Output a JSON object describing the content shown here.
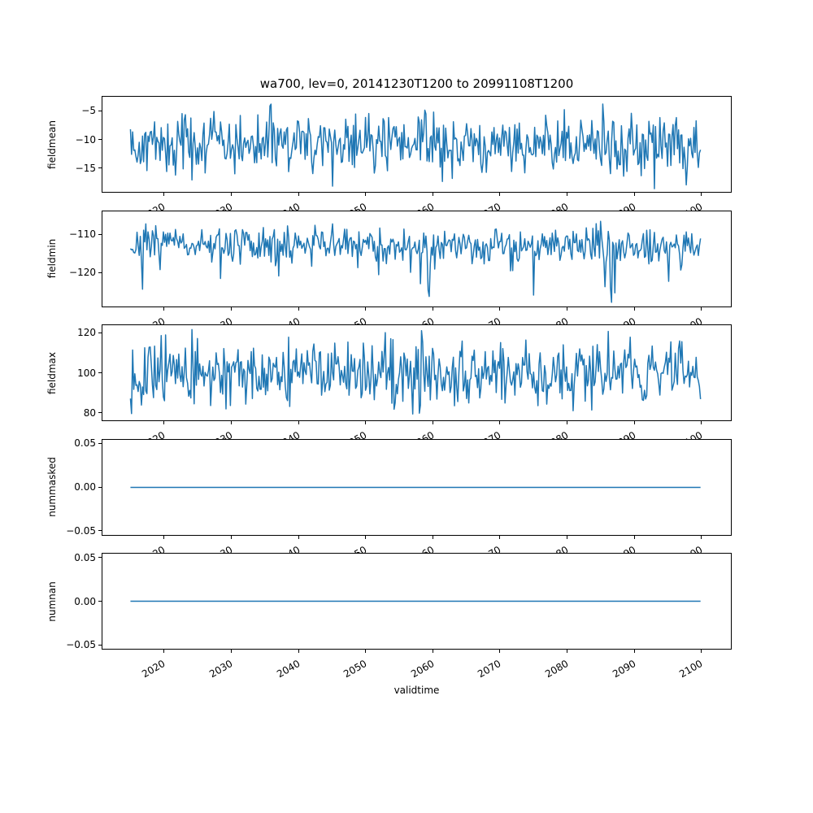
{
  "figure": {
    "title": "wa700, lev=0, 20141230T1200 to 20991108T1200",
    "xlabel": "validtime",
    "background_color": "#ffffff",
    "line_color": "#1f77b4",
    "text_color": "#000000"
  },
  "chart_data": {
    "type": "line",
    "title": "wa700, lev=0, 20141230T1200 to 20991108T1200",
    "xlabel": "validtime",
    "legend": "none",
    "grid": false,
    "line_color": "#1f77b4",
    "x_axis": {
      "lim": [
        2010.7,
        2104.5
      ],
      "tick_values": [
        2020,
        2030,
        2040,
        2050,
        2060,
        2070,
        2080,
        2090,
        2100
      ],
      "tick_labels": [
        "2020",
        "2030",
        "2040",
        "2050",
        "2060",
        "2070",
        "2080",
        "2090",
        "2100"
      ],
      "data_start": 2014.99,
      "data_end": 2099.86,
      "n_points": 520
    },
    "subplots": [
      {
        "name": "fieldmean",
        "ylabel": "fieldmean",
        "ylim": [
          -19.3,
          -2.4
        ],
        "ytick_values": [
          -5,
          -10,
          -15
        ],
        "ytick_labels": [
          "−5",
          "−10",
          "−15"
        ],
        "series": {
          "kind": "noise",
          "seed": 42,
          "mean": -10.8,
          "std": 2.6,
          "min": -18.6,
          "max": -3.3
        }
      },
      {
        "name": "fieldmin",
        "ylabel": "fieldmin",
        "ylim": [
          -128.9,
          -103.7
        ],
        "ytick_values": [
          -110,
          -120
        ],
        "ytick_labels": [
          "−110",
          "−120"
        ],
        "series": {
          "kind": "noise",
          "seed": 7,
          "mean": -112.6,
          "std": 2.3,
          "min": -127.6,
          "max": -105.5,
          "spike_p": 0.055,
          "spike_lo": 2,
          "spike_hi": 13
        }
      },
      {
        "name": "fieldmax",
        "ylabel": "fieldmax",
        "ylim": [
          75.8,
          124.2
        ],
        "ytick_values": [
          120,
          100,
          80
        ],
        "ytick_labels": [
          "120",
          "100",
          "80"
        ],
        "series": {
          "kind": "noise",
          "seed": 13,
          "mean": 100,
          "std": 7.8,
          "min": 78.3,
          "max": 121.6
        }
      },
      {
        "name": "nummasked",
        "ylabel": "nummasked",
        "ylim": [
          -0.0556,
          0.0556
        ],
        "ytick_values": [
          0.05,
          0,
          -0.05
        ],
        "ytick_labels": [
          "0.05",
          "0.00",
          "−0.05"
        ],
        "series": {
          "kind": "constant",
          "value": 0
        }
      },
      {
        "name": "numnan",
        "ylabel": "numnan",
        "ylim": [
          -0.0556,
          0.0556
        ],
        "ytick_values": [
          0.05,
          0,
          -0.05
        ],
        "ytick_labels": [
          "0.05",
          "0.00",
          "−0.05"
        ],
        "series": {
          "kind": "constant",
          "value": 0
        }
      }
    ]
  }
}
